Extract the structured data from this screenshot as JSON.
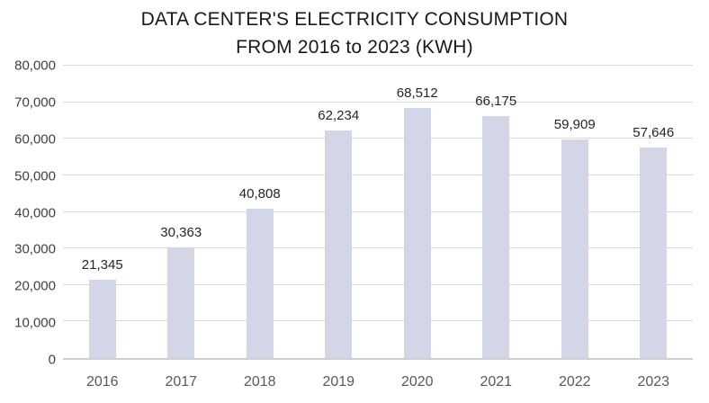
{
  "title": {
    "line1": "DATA CENTER'S ELECTRICITY CONSUMPTION",
    "line2": "FROM 2016 to 2023 (KWH)"
  },
  "chart_data": {
    "type": "bar",
    "title": "DATA CENTER'S ELECTRICITY CONSUMPTION FROM 2016 to 2023 (KWH)",
    "categories": [
      "2016",
      "2017",
      "2018",
      "2019",
      "2020",
      "2021",
      "2022",
      "2023"
    ],
    "values": [
      21345,
      30363,
      40808,
      62234,
      68512,
      66175,
      59909,
      57646
    ],
    "data_labels": [
      "21,345",
      "30,363",
      "40,808",
      "62,234",
      "68,512",
      "66,175",
      "59,909",
      "57,646"
    ],
    "xlabel": "",
    "ylabel": "",
    "ylim": [
      0,
      80000
    ],
    "ytick_step": 10000,
    "ytick_labels": [
      "0",
      "10,000",
      "20,000",
      "30,000",
      "40,000",
      "50,000",
      "60,000",
      "70,000",
      "80,000"
    ],
    "grid": true,
    "legend": "none",
    "colors": {
      "bar_fill": "#d2d6e6",
      "gridline": "#d9d9d9",
      "axis_line": "#cfcfcf",
      "title_text": "#1a1a1a",
      "ytick_text": "#404040",
      "xtick_text": "#595959",
      "data_label_text": "#262626",
      "background": "#ffffff"
    }
  }
}
